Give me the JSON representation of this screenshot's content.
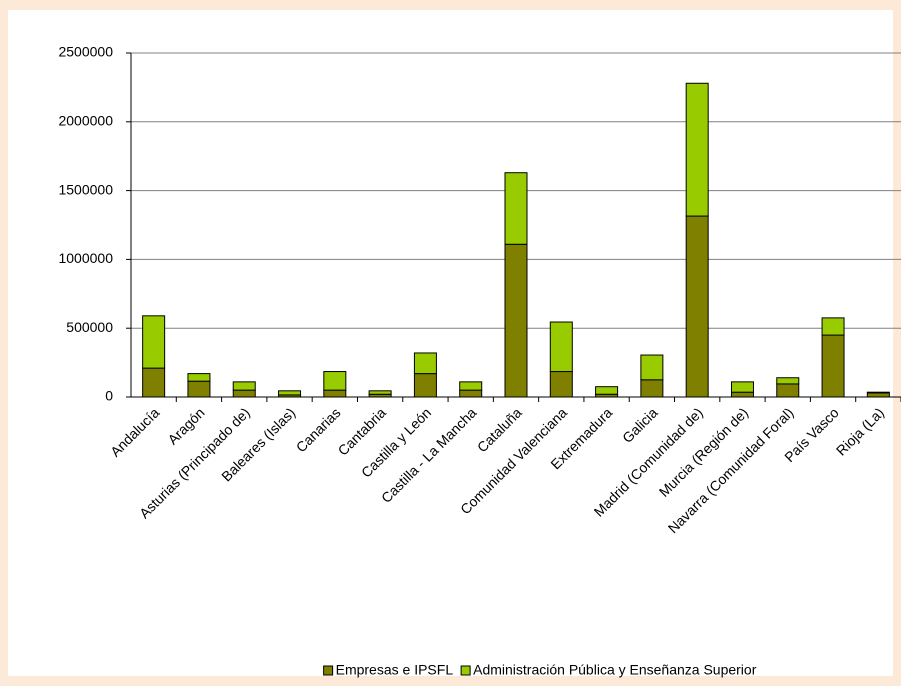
{
  "chart_data": {
    "type": "stacked-bar",
    "categories": [
      "Andalucía",
      "Aragón",
      "Asturias (Principado de)",
      "Baleares (Islas)",
      "Canarias",
      "Cantabria",
      "Castilla y León",
      "Castilla - La Mancha",
      "Cataluña",
      "Comunidad Valenciana",
      "Extremadura",
      "Galicia",
      "Madrid (Comunidad de)",
      "Murcia (Región de)",
      "Navarra (Comunidad Foral)",
      "País Vasco",
      "Rioja (La)"
    ],
    "series": [
      {
        "name": "Empresas e IPSFL",
        "color": "#808000",
        "values": [
          210000,
          115000,
          50000,
          15000,
          50000,
          20000,
          170000,
          50000,
          1110000,
          185000,
          20000,
          125000,
          1315000,
          35000,
          95000,
          450000,
          30000
        ]
      },
      {
        "name": "Administración Pública y Enseñanza Superior",
        "color": "#99cc00",
        "values": [
          380000,
          55000,
          60000,
          30000,
          135000,
          25000,
          150000,
          60000,
          520000,
          360000,
          55000,
          180000,
          965000,
          75000,
          45000,
          125000,
          5000
        ]
      }
    ],
    "ylim": [
      0,
      2500000
    ],
    "yticks": [
      0,
      500000,
      1000000,
      1500000,
      2000000,
      2500000
    ],
    "grid": true,
    "legend": "bottom"
  }
}
